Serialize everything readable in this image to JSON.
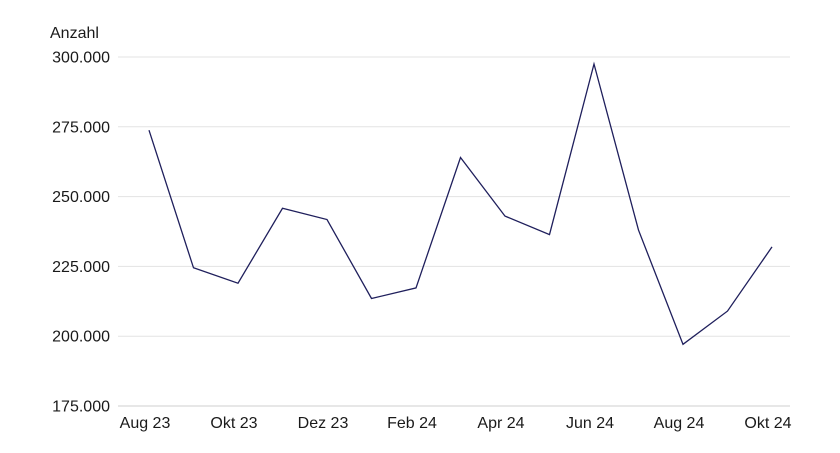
{
  "chart_data": {
    "type": "line",
    "ylabel": "Anzahl",
    "ylim": [
      175000,
      300000
    ],
    "y_ticks": [
      175000,
      200000,
      225000,
      250000,
      275000,
      300000
    ],
    "y_tick_labels": [
      "175.000",
      "200.000",
      "225.000",
      "250.000",
      "275.000",
      "300.000"
    ],
    "x_tick_labels": [
      "Aug 23",
      "Okt 23",
      "Dez 23",
      "Feb 24",
      "Apr 24",
      "Jun 24",
      "Aug 24",
      "Okt 24"
    ],
    "x": [
      "Aug 23",
      "Sep 23",
      "Okt 23",
      "Nov 23",
      "Dez 23",
      "Jan 24",
      "Feb 24",
      "Mär 24",
      "Apr 24",
      "Mai 24",
      "Jun 24",
      "Jul 24",
      "Aug 24",
      "Sep 24",
      "Okt 24"
    ],
    "series": [
      {
        "values": [
          273800,
          224500,
          219000,
          245800,
          241800,
          213500,
          217300,
          264000,
          243000,
          236400,
          297500,
          238000,
          197100,
          209000,
          232000
        ],
        "color": "#1f1f5c"
      }
    ],
    "grid": true
  }
}
